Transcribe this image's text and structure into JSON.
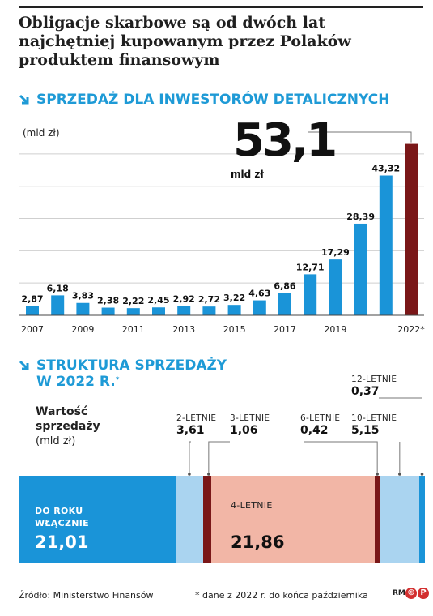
{
  "headline": "Obligacje skarbowe są od dwóch lat najchętniej kupowanym przez Polaków produktem finansowym",
  "section1": {
    "title": "SPRZEDAŻ DLA INWESTORÓW DETALICZNYCH",
    "unit": "(mld zł)"
  },
  "highlight": {
    "value": "53,1",
    "unit": "mld zł"
  },
  "section2": {
    "title_line1": "STRUKTURA SPRZEDAŻY",
    "title_line2": "W 2022 R.",
    "title_mark": "*"
  },
  "structure": {
    "label_line1": "Wartość",
    "label_line2": "sprzedaży",
    "unit": "(mld zł)",
    "segments": [
      {
        "label_line1": "DO ROKU",
        "label_line2": "WŁĄCZNIE",
        "value": "21,01",
        "amount": 21.01,
        "color": "#1a94d8"
      },
      {
        "label": "2-LETNIE",
        "value": "3,61",
        "amount": 3.61,
        "color": "#aad4f0"
      },
      {
        "label": "3-LETNIE",
        "value": "1,06",
        "amount": 1.06,
        "color": "#7a1718"
      },
      {
        "label": "4-LETNIE",
        "value": "21,86",
        "amount": 21.86,
        "color": "#f2b6a6"
      },
      {
        "label": "6-LETNIE",
        "value": "0,42",
        "amount": 0.42,
        "color": "#7a1718"
      },
      {
        "label": "10-LETNIE",
        "value": "5,15",
        "amount": 5.15,
        "color": "#aad4f0"
      },
      {
        "label": "12-LETNIE",
        "value": "0,37",
        "amount": 0.37,
        "color": "#1a94d8"
      }
    ]
  },
  "footer": {
    "source": "Źródło: Ministerstwo Finansów",
    "note": "* dane z 2022 r. do końca października",
    "logo_text": "RM",
    "logo_mark": "P"
  },
  "chart_data": {
    "type": "bar",
    "title": "SPRZEDAŻ DLA INWESTORÓW DETALICZNYCH",
    "ylabel": "(mld zł)",
    "xlabel": "",
    "categories": [
      "2007",
      "2008",
      "2009",
      "2010",
      "2011",
      "2012",
      "2013",
      "2014",
      "2015",
      "2016",
      "2017",
      "2018",
      "2019",
      "2020",
      "2021",
      "2022*"
    ],
    "values": [
      2.87,
      6.18,
      3.83,
      2.38,
      2.22,
      2.45,
      2.92,
      2.72,
      3.22,
      4.63,
      6.86,
      12.71,
      17.29,
      28.39,
      43.32,
      53.1
    ],
    "value_labels": [
      "2,87",
      "6,18",
      "3,83",
      "2,38",
      "2,22",
      "2,45",
      "2,92",
      "2,72",
      "3,22",
      "4,63",
      "6,86",
      "12,71",
      "17,29",
      "28,39",
      "43,32",
      ""
    ],
    "tick_labels": [
      "2007",
      "",
      "2009",
      "",
      "2011",
      "",
      "2013",
      "",
      "2015",
      "",
      "2017",
      "",
      "2019",
      "",
      "",
      "2022*"
    ],
    "ylim": [
      0,
      55
    ],
    "grid": true,
    "bar_color": "#1a94d8",
    "highlight_color": "#7a1718"
  }
}
